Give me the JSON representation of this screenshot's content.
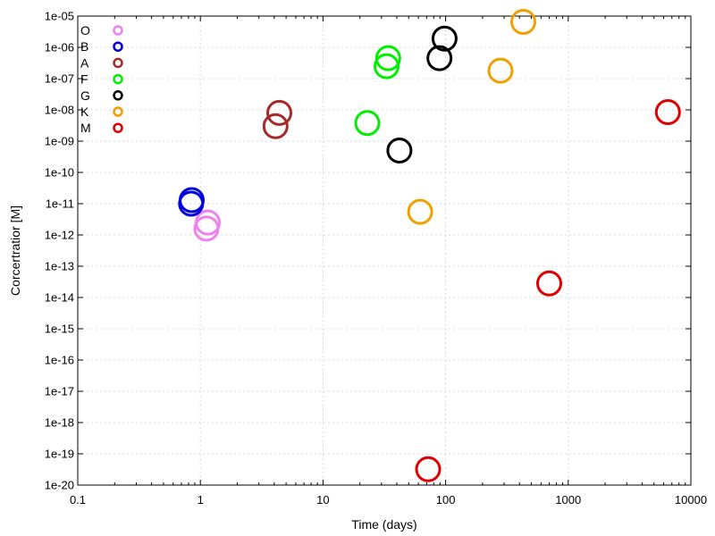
{
  "chart_data": {
    "type": "scatter",
    "xlabel": "Time (days)",
    "ylabel": "Corcertratior [M]",
    "x_scale": "log",
    "y_scale": "log",
    "xlim": [
      0.1,
      10000
    ],
    "ylim": [
      1e-20,
      1e-05
    ],
    "x_ticks": [
      "0.1",
      "1",
      "10",
      "100",
      "1000",
      "10000"
    ],
    "y_ticks": [
      "1e-20",
      "1e-19",
      "1e-18",
      "1e-17",
      "1e-16",
      "1e-15",
      "1e-14",
      "1e-13",
      "1e-12",
      "1e-11",
      "1e-10",
      "1e-09",
      "1e-08",
      "1e-07",
      "1e-06",
      "1e-05"
    ],
    "grid": true,
    "legend_position": "top-left",
    "marker": "open-circle",
    "series": [
      {
        "name": "O",
        "color": "#ee82ee",
        "points": [
          [
            1.15,
            2.5e-12
          ],
          [
            1.12,
            1.6e-12
          ]
        ]
      },
      {
        "name": "B",
        "color": "#0000dd",
        "points": [
          [
            0.85,
            1.3e-11
          ],
          [
            0.84,
            1e-11
          ]
        ]
      },
      {
        "name": "A",
        "color": "#a52a2a",
        "points": [
          [
            4.4,
            8e-09
          ],
          [
            4.1,
            3e-09
          ]
        ]
      },
      {
        "name": "F",
        "color": "#00ee00",
        "points": [
          [
            34,
            4.5e-07
          ],
          [
            33,
            2.5e-07
          ],
          [
            23,
            3.8e-09
          ]
        ]
      },
      {
        "name": "G",
        "color": "#000000",
        "points": [
          [
            98,
            1.9e-06
          ],
          [
            89,
            4.5e-07
          ],
          [
            42,
            5e-10
          ]
        ]
      },
      {
        "name": "K",
        "color": "#f0a000",
        "points": [
          [
            430,
            6.5e-06
          ],
          [
            280,
            1.8e-07
          ],
          [
            62,
            5.5e-12
          ]
        ]
      },
      {
        "name": "M",
        "color": "#dd0000",
        "points": [
          [
            6500,
            8.5e-09
          ],
          [
            700,
            2.8e-14
          ],
          [
            72,
            3.2e-20
          ]
        ]
      }
    ]
  }
}
